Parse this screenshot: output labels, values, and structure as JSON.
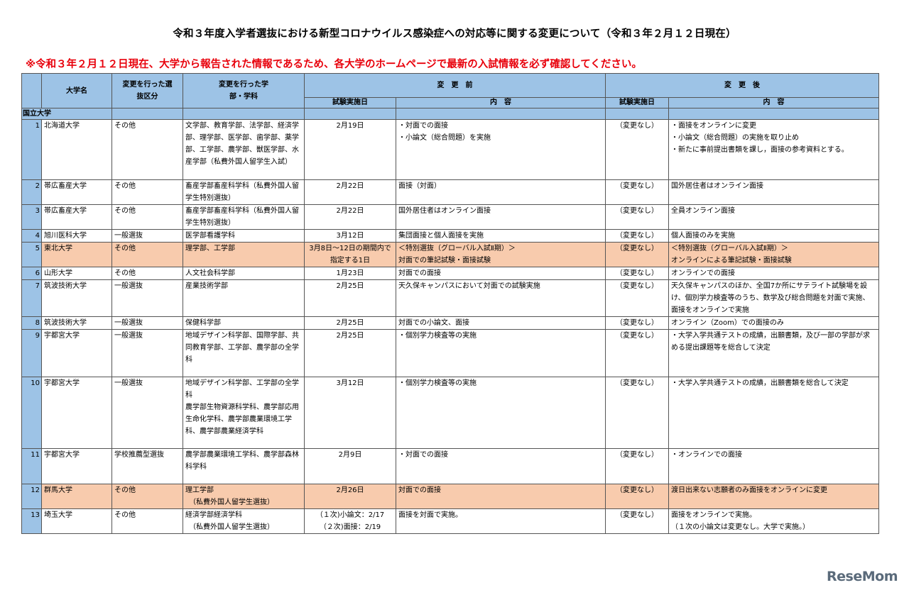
{
  "title": "令和３年度入学者選抜における新型コロナウイルス感染症への対応等に関する変更について（令和３年２月１２日現在）",
  "notice": "※令和３年２月１２日現在、大学から報告された情報であるため、各大学のホームページで最新の入試情報を必ず確認してください。",
  "header": {
    "university": "大学名",
    "category": "変更を行った選抜区分",
    "department": "変更を行った学部・学科",
    "before": "変　更　前",
    "after": "変　更　後",
    "exam_date": "試験実施日",
    "content": "内　容"
  },
  "section": "国立大学",
  "colors": {
    "header": "#9dc3e6",
    "highlight": "#f8cbad",
    "notice": "#e8000b"
  },
  "rows": [
    {
      "no": "1",
      "univ": "北海道大学",
      "cat": "その他",
      "dept": "文学部、教育学部、法学部、経済学部、理学部、医学部、歯学部、薬学部、工学部、農学部、獣医学部、水産学部（私費外国人留学生入試）",
      "before_date": "2月19日",
      "before": "・対面での面接\n・小論文（総合問題）を実施",
      "after_date": "（変更なし）",
      "after": "・面接をオンラインに変更\n・小論文（総合問題）の実施を取り止め\n・新たに事前提出書類を課し，面接の参考資料とする。",
      "hl": false
    },
    {
      "no": "2",
      "univ": "帯広畜産大学",
      "cat": "その他",
      "dept": "畜産学部畜産科学科（私費外国人留学生特別選抜）",
      "before_date": "2月22日",
      "before": "面接（対面）",
      "after_date": "（変更なし）",
      "after": "国外居住者はオンライン面接",
      "hl": false
    },
    {
      "no": "3",
      "univ": "帯広畜産大学",
      "cat": "その他",
      "dept": "畜産学部畜産科学科（私費外国人留学生特別選抜）",
      "before_date": "2月22日",
      "before": "国外居住者はオンライン面接",
      "after_date": "（変更なし）",
      "after": "全員オンライン面接",
      "hl": false
    },
    {
      "no": "4",
      "univ": "旭川医科大学",
      "cat": "一般選抜",
      "dept": "医学部看護学科",
      "before_date": "3月12日",
      "before": "集団面接と個人面接を実施",
      "after_date": "（変更なし）",
      "after": "個人面接のみを実施",
      "hl": false
    },
    {
      "no": "5",
      "univ": "東北大学",
      "cat": "その他",
      "dept": "理学部、工学部",
      "before_date": "3月8日～12日の期間内で\n指定する1日",
      "before": "＜特別選抜（グローバル入試Ⅱ期）＞\n対面での筆記試験・面接試験",
      "after_date": "（変更なし）",
      "after": "＜特別選抜（グローバル入試Ⅱ期）＞\nオンラインによる筆記試験・面接試験",
      "hl": true
    },
    {
      "no": "6",
      "univ": "山形大学",
      "cat": "その他",
      "dept": "人文社会科学部",
      "before_date": "1月23日",
      "before": "対面での面接",
      "after_date": "（変更なし）",
      "after": "オンラインでの面接",
      "hl": false
    },
    {
      "no": "7",
      "univ": "筑波技術大学",
      "cat": "一般選抜",
      "dept": "産業技術学部",
      "before_date": "2月25日",
      "before": "天久保キャンパスにおいて対面での試験実施",
      "after_date": "（変更なし）",
      "after": "天久保キャンパスのほか、全国7か所にサテライト試験場を設け、個別学力検査等のうち、数学及び総合問題を対面で実施、面接をオンラインで実施",
      "hl": false
    },
    {
      "no": "8",
      "univ": "筑波技術大学",
      "cat": "一般選抜",
      "dept": "保健科学部",
      "before_date": "2月25日",
      "before": "対面での小論文、面接",
      "after_date": "（変更なし）",
      "after": "オンライン（Zoom）での面接のみ",
      "hl": false
    },
    {
      "no": "9",
      "univ": "宇都宮大学",
      "cat": "一般選抜",
      "dept": "地域デザイン科学部、国際学部、共同教育学部、工学部、農学部の全学科",
      "before_date": "2月25日",
      "before": "・個別学力検査等の実施",
      "after_date": "（変更なし）",
      "after": "・大学入学共通テストの成績，出願書類，及び一部の学部が求める提出課題等を総合して決定",
      "hl": false
    },
    {
      "no": "10",
      "univ": "宇都宮大学",
      "cat": "一般選抜",
      "dept": "地域デザイン科学部、工学部の全学科\n農学部生物資源科学科、農学部応用生命化学科、農学部農業環境工学科、農学部農業経済学科",
      "before_date": "3月12日",
      "before": "・個別学力検査等の実施",
      "after_date": "（変更なし）",
      "after": "・大学入学共通テストの成績，出願書類を総合して決定",
      "hl": false
    },
    {
      "no": "11",
      "univ": "宇都宮大学",
      "cat": "学校推薦型選抜",
      "dept": "農学部農業環境工学科、農学部森林科学科",
      "before_date": "2月9日",
      "before": "・対面での面接",
      "after_date": "（変更なし）",
      "after": "・オンラインでの面接",
      "hl": false
    },
    {
      "no": "12",
      "univ": "群馬大学",
      "cat": "その他",
      "dept": "理工学部\n　（私費外国人留学生選抜）",
      "before_date": "2月26日",
      "before": "対面での面接",
      "after_date": "（変更なし）",
      "after": "渡日出来ない志願者のみ面接をオンラインに変更",
      "hl": true
    },
    {
      "no": "13",
      "univ": "埼玉大学",
      "cat": "その他",
      "dept": "経済学部経済学科\n　（私費外国人留学生選抜）",
      "before_date": "（１次)小論文：2/17\n（２次)面接：2/19",
      "before": "面接を対面で実施。",
      "after_date": "（変更なし）",
      "after": "面接をオンラインで実施。\n（１次の小論文は変更なし。大学で実施。）",
      "hl": false
    }
  ],
  "watermark": "ReseMom"
}
